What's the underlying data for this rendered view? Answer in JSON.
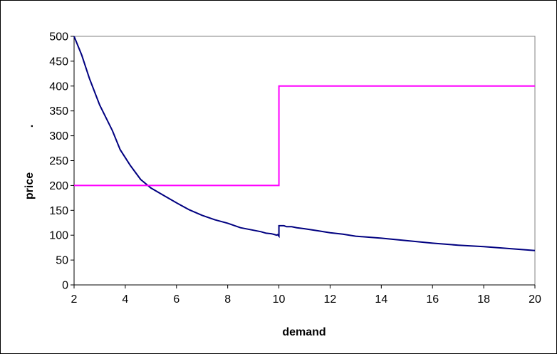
{
  "chart_data": {
    "type": "line",
    "title": "",
    "xlabel": "demand",
    "ylabel": "price",
    "ylabel_mark": ".",
    "xlim": [
      2,
      20
    ],
    "ylim": [
      0,
      500
    ],
    "x_ticks": [
      2,
      4,
      6,
      8,
      10,
      12,
      14,
      16,
      18,
      20
    ],
    "y_ticks": [
      0,
      50,
      100,
      150,
      200,
      250,
      300,
      350,
      400,
      450,
      500
    ],
    "grid": false,
    "legend": "none",
    "series": [
      {
        "color": "#000080",
        "points": [
          [
            2,
            500
          ],
          [
            2.3,
            462
          ],
          [
            2.6,
            415
          ],
          [
            3,
            362
          ],
          [
            3.5,
            310
          ],
          [
            3.8,
            272
          ],
          [
            4.2,
            240
          ],
          [
            4.6,
            212
          ],
          [
            5,
            195
          ],
          [
            5.5,
            180
          ],
          [
            6,
            165
          ],
          [
            6.5,
            151
          ],
          [
            7,
            140
          ],
          [
            7.5,
            131
          ],
          [
            8,
            124
          ],
          [
            8.5,
            115
          ],
          [
            9,
            110
          ],
          [
            9.3,
            107
          ],
          [
            9.5,
            104
          ],
          [
            9.7,
            103
          ],
          [
            9.85,
            101
          ],
          [
            9.9,
            100
          ],
          [
            9.95,
            101
          ],
          [
            10.0,
            98
          ],
          [
            10.0,
            119
          ],
          [
            10.2,
            119
          ],
          [
            10.3,
            117
          ],
          [
            10.5,
            117
          ],
          [
            10.7,
            115
          ],
          [
            11,
            113
          ],
          [
            11.5,
            109
          ],
          [
            12,
            105
          ],
          [
            12.5,
            102
          ],
          [
            13,
            98
          ],
          [
            14,
            94
          ],
          [
            15,
            89
          ],
          [
            16,
            84
          ],
          [
            17,
            80
          ],
          [
            18,
            77
          ],
          [
            19,
            73
          ],
          [
            20,
            69
          ]
        ]
      },
      {
        "color": "#ff00ff",
        "points": [
          [
            2,
            200
          ],
          [
            10,
            200
          ],
          [
            10,
            400
          ],
          [
            20,
            400
          ]
        ]
      }
    ]
  }
}
